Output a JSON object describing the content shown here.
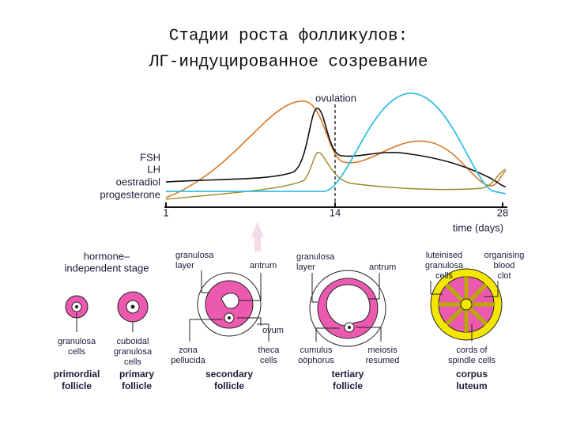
{
  "title": [
    "Стадии роста фолликулов:",
    "ЛГ-индуцированное созревание"
  ],
  "graph": {
    "annotation": "ovulation",
    "legend": [
      "FSH",
      "LH",
      "oestradiol",
      "progesterone"
    ],
    "ticks": [
      "1",
      "14",
      "28"
    ],
    "axis_label": "time (days)"
  },
  "stages": {
    "header": [
      "hormone–",
      "independent stage"
    ],
    "primordial": {
      "label": [
        "granulosa",
        "cells"
      ],
      "name": [
        "primordial",
        "follicle"
      ]
    },
    "primary": {
      "label": [
        "cuboidal",
        "granulosa",
        "cells"
      ],
      "name": [
        "primary",
        "follicle"
      ]
    },
    "secondary": {
      "layer": [
        "granulosa",
        "layer"
      ],
      "antrum": "antrum",
      "ovum": "ovum",
      "zona": [
        "zona",
        "pellucida"
      ],
      "theca": [
        "theca",
        "cells"
      ],
      "name": [
        "secondary",
        "follicle"
      ]
    },
    "tertiary": {
      "layer": [
        "granulosa",
        "layer"
      ],
      "antrum": "antrum",
      "cumulus": [
        "cumulus",
        "oöphorus"
      ],
      "meiosis": [
        "meiosis",
        "resumed"
      ],
      "name": [
        "tertiary",
        "follicle"
      ]
    },
    "corpus": {
      "luteinised": [
        "luteinised",
        "granulosa",
        "cells"
      ],
      "clot": [
        "organising",
        "blood",
        "clot"
      ],
      "cords": [
        "cords of",
        "spindle cells"
      ],
      "name": [
        "corpus",
        "luteum"
      ]
    }
  }
}
